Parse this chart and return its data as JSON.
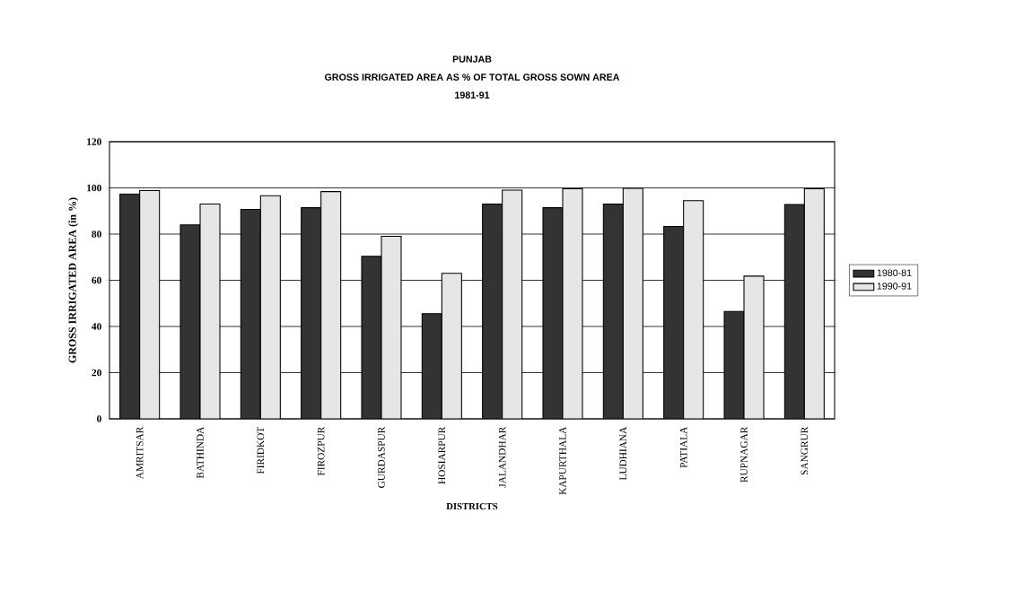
{
  "chart_data": {
    "type": "bar",
    "title": "PUNJAB",
    "subtitle": "GROSS IRRIGATED AREA AS % OF TOTAL GROSS SOWN AREA",
    "annotations": [
      "1981-91"
    ],
    "xlabel": "DISTRICTS",
    "ylabel": "GROSS IRRIGATED AREA (in %)",
    "categories": [
      "AMRITSAR",
      "BATHINDA",
      "FIRIDKOT",
      "FIROZPUR",
      "GURDASPUR",
      "HOSIARPUR",
      "JALANDHAR",
      "KAPURTHALA",
      "LUDHIANA",
      "PATIALA",
      "RUPNAGAR",
      "SANGRUR"
    ],
    "series": [
      {
        "name": "1980-81",
        "color": "#333333",
        "values": [
          97.4,
          84,
          90.7,
          91.4,
          70.4,
          45.5,
          93,
          91.4,
          93,
          83.3,
          46.5,
          92.8
        ]
      },
      {
        "name": "1990-91",
        "color": "#e6e6e6",
        "values": [
          98.8,
          93,
          96.6,
          98.4,
          79,
          63,
          99,
          99.6,
          99.8,
          94.5,
          61.8,
          99.6
        ]
      }
    ],
    "ylim": [
      0,
      120
    ],
    "yticks": [
      0,
      20,
      40,
      60,
      80,
      100,
      120
    ],
    "grid": "y",
    "legend": "right"
  }
}
